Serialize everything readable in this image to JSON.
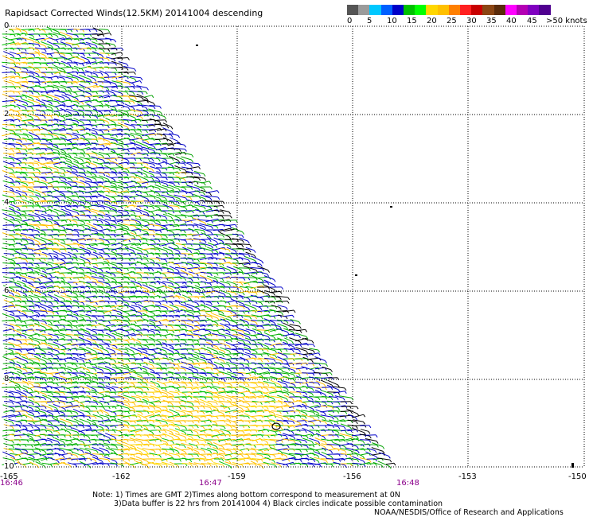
{
  "title": "Rapidsact Corrected Winds(12.5KM) 20141004 descending",
  "legend": {
    "colors": [
      "#555555",
      "#9b9b9b",
      "#00c8ff",
      "#0060ff",
      "#0000c8",
      "#00c000",
      "#00ff00",
      "#ffd700",
      "#ffc000",
      "#ff7f00",
      "#ff2020",
      "#c80000",
      "#8b4513",
      "#5a2b0a",
      "#ff00ff",
      "#b400b4",
      "#8000c0",
      "#500090"
    ],
    "ticks": [
      "0",
      "5",
      "10",
      "15",
      "20",
      "25",
      "30",
      "35",
      "40",
      "45",
      ">50 knots"
    ]
  },
  "chart_data": {
    "type": "wind-barb-map",
    "lat_labels": [
      "0",
      "2",
      "4",
      "6",
      "8",
      "10"
    ],
    "lon_labels": [
      "-165",
      "-162",
      "-159",
      "-156",
      "-153",
      "-150"
    ],
    "time_labels": [
      "16:46",
      "16:47",
      "16:48"
    ],
    "swath": {
      "pass": "descending",
      "date": "20141004"
    }
  },
  "notes": {
    "line1": "Note: 1) Times are GMT 2)Times along bottom correspond to measurement at 0N",
    "line2": "3)Data buffer is 22 hrs from 20141004 4) Black circles indicate possible contamination",
    "credit": "NOAA/NESDIS/Office of Research and Applications"
  }
}
